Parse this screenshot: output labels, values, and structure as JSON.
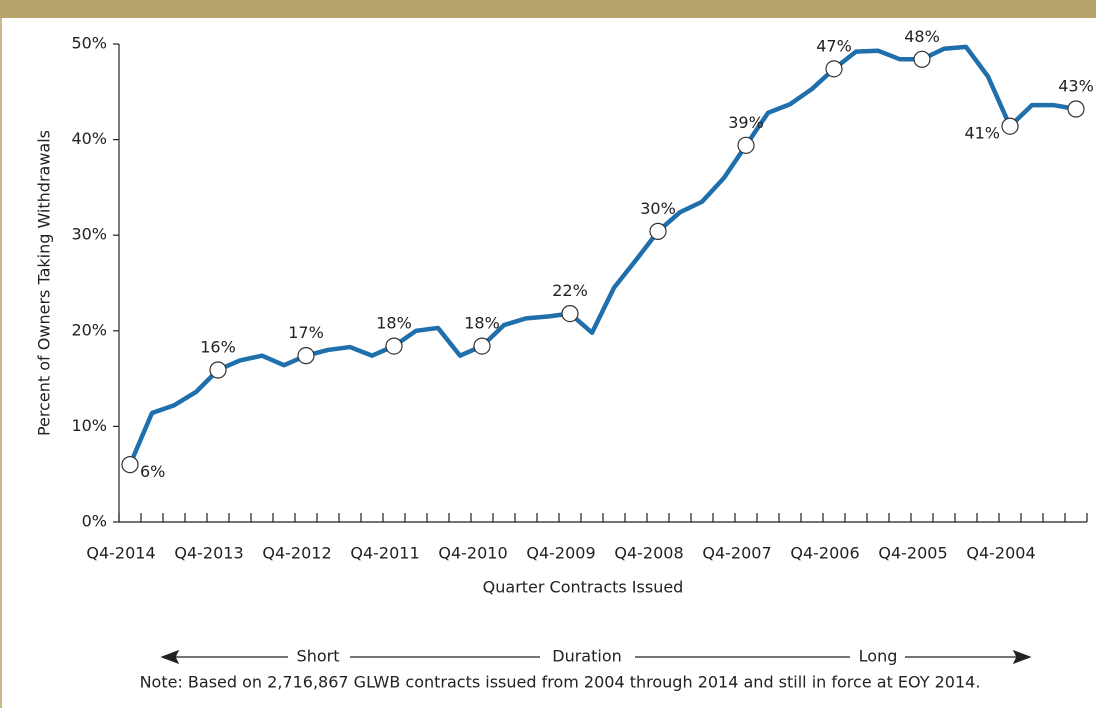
{
  "chart_data": {
    "type": "line",
    "y_label": "Percent of Owners Taking Withdrawals",
    "x_label": "Quarter Contracts Issued",
    "duration_labels": [
      "Short",
      "Duration",
      "Long"
    ],
    "note": "Note: Based on 2,716,867 GLWB contracts issued from 2004 through 2014 and still in force at EOY 2014.",
    "categories": [
      "Q4-2014",
      null,
      null,
      null,
      "Q4-2013",
      null,
      null,
      null,
      "Q4-2012",
      null,
      null,
      null,
      "Q4-2011",
      null,
      null,
      null,
      "Q4-2010",
      null,
      null,
      null,
      "Q4-2009",
      null,
      null,
      null,
      "Q4-2008",
      null,
      null,
      null,
      "Q4-2007",
      null,
      null,
      null,
      "Q4-2006",
      null,
      null,
      null,
      "Q4-2005",
      null,
      null,
      null,
      "Q4-2004",
      null,
      null,
      null
    ],
    "series": [
      {
        "name": "Percent of Owners Taking Withdrawals",
        "color": "#1f6fad",
        "values": [
          6,
          11.4,
          12.2,
          13.6,
          15.9,
          16.9,
          17.4,
          16.4,
          17.4,
          18.0,
          18.3,
          17.4,
          18.4,
          20.0,
          20.3,
          17.4,
          18.4,
          20.6,
          21.3,
          21.5,
          21.8,
          19.8,
          24.5,
          27.4,
          30.4,
          32.4,
          33.5,
          36.0,
          39.4,
          42.8,
          43.7,
          45.3,
          47.4,
          49.2,
          49.3,
          48.4,
          48.4,
          49.5,
          49.7,
          46.6,
          41.4,
          43.6,
          43.6,
          43.2
        ],
        "value_labels": [
          "6%",
          null,
          null,
          null,
          "16%",
          null,
          null,
          null,
          "17%",
          null,
          null,
          null,
          "18%",
          null,
          null,
          null,
          "18%",
          null,
          null,
          null,
          "22%",
          null,
          null,
          null,
          "30%",
          null,
          null,
          null,
          "39%",
          null,
          null,
          null,
          "47%",
          null,
          null,
          null,
          "48%",
          null,
          null,
          null,
          "41%",
          null,
          null,
          "43%"
        ]
      }
    ],
    "ylim": [
      0,
      50
    ],
    "yticks": [
      {
        "value": 0,
        "label": "0%"
      },
      {
        "value": 10,
        "label": "10%"
      },
      {
        "value": 20,
        "label": "20%"
      },
      {
        "value": 30,
        "label": "30%"
      },
      {
        "value": 40,
        "label": "40%"
      },
      {
        "value": 50,
        "label": "50%"
      }
    ],
    "grid": false
  }
}
